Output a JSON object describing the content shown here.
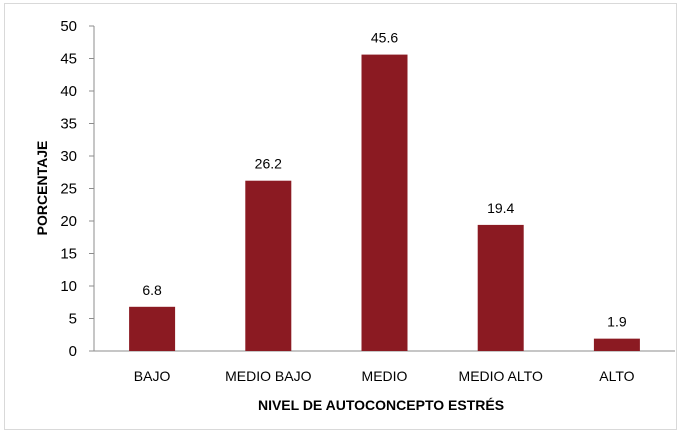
{
  "chart_data": {
    "type": "bar",
    "categories": [
      "BAJO",
      "MEDIO BAJO",
      "MEDIO",
      "MEDIO ALTO",
      "ALTO"
    ],
    "values": [
      6.8,
      26.2,
      45.6,
      19.4,
      1.9
    ],
    "data_labels": [
      "6.8",
      "26.2",
      "45.6",
      "19.4",
      "1.9"
    ],
    "xlabel": "NIVEL DE AUTOCONCEPTO ESTRÉS",
    "ylabel": "PORCENTAJE",
    "ylim": [
      0,
      50
    ],
    "yticks": [
      0,
      5,
      10,
      15,
      20,
      25,
      30,
      35,
      40,
      45,
      50
    ],
    "bar_color": "#8B1A22",
    "grid": false,
    "legend": "none"
  }
}
